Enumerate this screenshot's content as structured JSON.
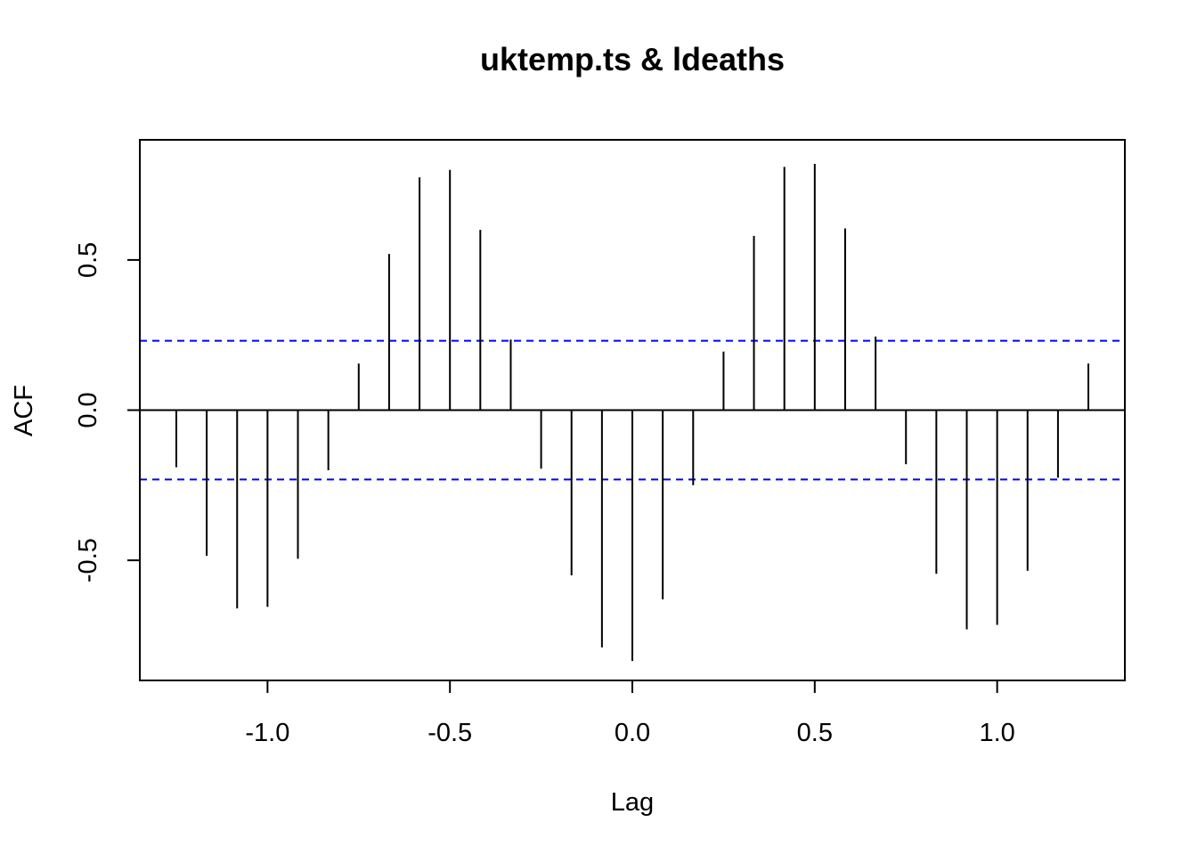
{
  "chart_data": {
    "type": "bar",
    "title": "uktemp.ts & ldeaths",
    "xlabel": "Lag",
    "ylabel": "ACF",
    "xlim": [
      -1.35,
      1.35
    ],
    "ylim": [
      -0.9,
      0.9
    ],
    "x_ticks": [
      -1.0,
      -0.5,
      0.0,
      0.5,
      1.0
    ],
    "x_tick_labels": [
      "-1.0",
      "-0.5",
      "0.0",
      "0.5",
      "1.0"
    ],
    "y_ticks": [
      -0.5,
      0.0,
      0.5
    ],
    "y_tick_labels": [
      "-0.5",
      "0.0",
      "0.5"
    ],
    "grid": false,
    "zero_line": true,
    "confidence_band": {
      "upper": 0.231,
      "lower": -0.231,
      "color": "#0000ff",
      "style": "dashed"
    },
    "bar_color": "#000000",
    "lags": [
      -1.25,
      -1.1667,
      -1.0833,
      -1.0,
      -0.9167,
      -0.8333,
      -0.75,
      -0.6667,
      -0.5833,
      -0.5,
      -0.4167,
      -0.3333,
      -0.25,
      -0.1667,
      -0.0833,
      0.0,
      0.0833,
      0.1667,
      0.25,
      0.3333,
      0.4167,
      0.5,
      0.5833,
      0.6667,
      0.75,
      0.8333,
      0.9167,
      1.0,
      1.0833,
      1.1667,
      1.25
    ],
    "values": [
      -0.19,
      -0.485,
      -0.66,
      -0.655,
      -0.495,
      -0.2,
      0.155,
      0.52,
      0.775,
      0.8,
      0.6,
      0.235,
      -0.195,
      -0.55,
      -0.79,
      -0.835,
      -0.63,
      -0.25,
      0.195,
      0.58,
      0.81,
      0.82,
      0.605,
      0.245,
      -0.18,
      -0.545,
      -0.73,
      -0.715,
      -0.535,
      -0.225,
      0.155
    ]
  }
}
